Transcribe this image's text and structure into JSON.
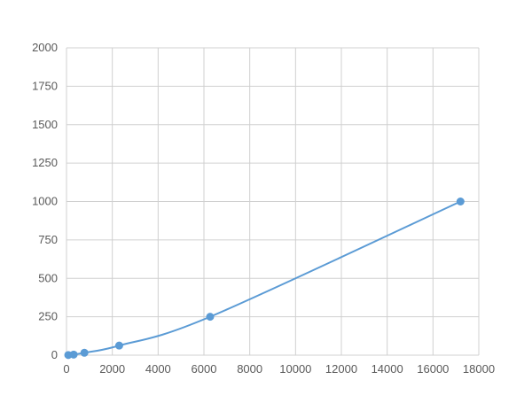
{
  "chart_data": {
    "type": "scatter",
    "title": "",
    "xlabel": "",
    "ylabel": "",
    "xlim": [
      0,
      18000
    ],
    "ylim": [
      0,
      2000
    ],
    "xticks": [
      0,
      2000,
      4000,
      6000,
      8000,
      10000,
      12000,
      14000,
      16000,
      18000
    ],
    "yticks": [
      0,
      250,
      500,
      750,
      1000,
      1250,
      1500,
      1750,
      2000
    ],
    "grid": true,
    "series": [
      {
        "x": [
          78,
          313,
          781,
          2300,
          6270,
          17200
        ],
        "y": [
          1,
          3.9,
          15.6,
          62.5,
          250,
          1000
        ],
        "smooth_line": true
      }
    ],
    "color": "#5b9bd5",
    "grid_color": "#d0d0d0"
  }
}
